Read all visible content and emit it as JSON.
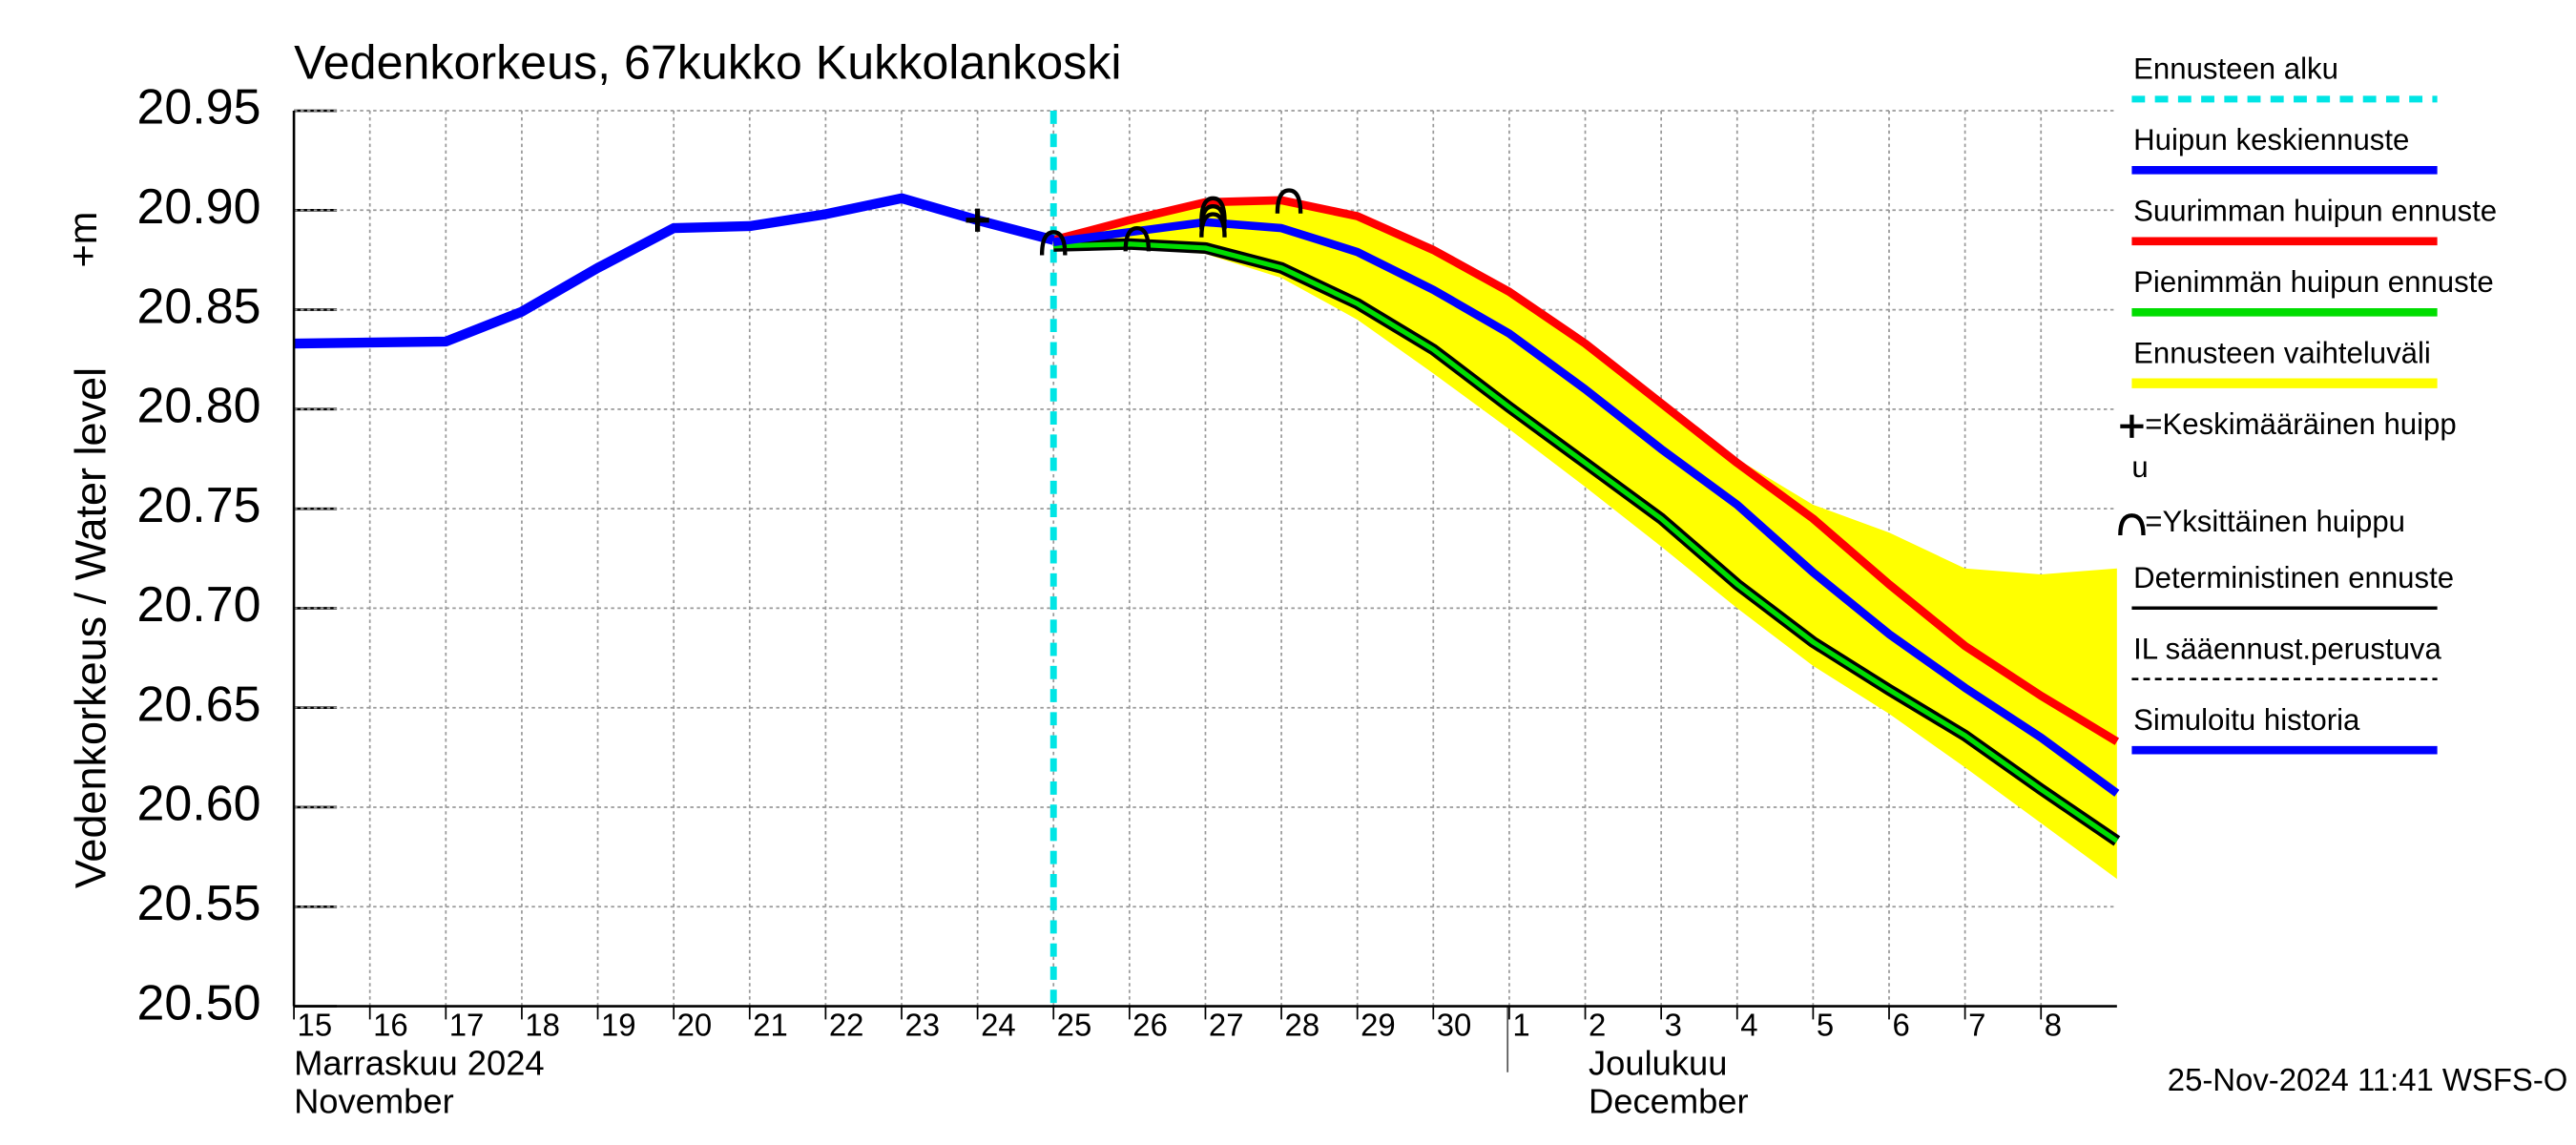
{
  "chart_data": {
    "type": "line",
    "title": "Vedenkorkeus, 67kukko Kukkolankoski",
    "ylabel": "Vedenkorkeus / Water level",
    "yunit": "+m",
    "ylim": [
      20.5,
      20.95
    ],
    "yticks": [
      {
        "value": 20.5,
        "label": "20.50"
      },
      20.55,
      {
        "value": 20.6,
        "label": "20.60"
      },
      20.65,
      {
        "value": 20.7,
        "label": "20.70"
      },
      20.75,
      {
        "value": 20.8,
        "label": "20.80"
      },
      20.85,
      {
        "value": 20.9,
        "label": "20.90"
      },
      20.95
    ],
    "xlim": [
      0,
      24
    ],
    "xticks": [
      {
        "value": 0,
        "label": "15"
      },
      {
        "value": 1,
        "label": "16"
      },
      {
        "value": 2,
        "label": "17"
      },
      {
        "value": 3,
        "label": "18"
      },
      {
        "value": 4,
        "label": "19"
      },
      {
        "value": 5,
        "label": "20"
      },
      {
        "value": 6,
        "label": "21"
      },
      {
        "value": 7,
        "label": "22"
      },
      {
        "value": 8,
        "label": "23"
      },
      {
        "value": 9,
        "label": "24"
      },
      {
        "value": 10,
        "label": "25"
      },
      {
        "value": 11,
        "label": "26"
      },
      {
        "value": 12,
        "label": "27"
      },
      {
        "value": 13,
        "label": "28"
      },
      {
        "value": 14,
        "label": "29"
      },
      {
        "value": 15,
        "label": "30"
      },
      {
        "value": 16,
        "label": "1"
      },
      {
        "value": 17,
        "label": "2"
      },
      {
        "value": 18,
        "label": "3"
      },
      {
        "value": 19,
        "label": "4"
      },
      {
        "value": 20,
        "label": "5"
      },
      {
        "value": 21,
        "label": "6"
      },
      {
        "value": 22,
        "label": "7"
      },
      {
        "value": 23,
        "label": "8"
      }
    ],
    "months": [
      {
        "x": 0,
        "label": "Marraskuu 2024",
        "label_en": "November"
      },
      {
        "x": 16,
        "label": "Joulukuu",
        "label_en": "December"
      }
    ],
    "grid": true,
    "series": [
      {
        "name": "Ennusteen alku",
        "kind": "vline",
        "x": 10,
        "color": "#00e5e5"
      },
      {
        "name": "Huipun keskiennuste",
        "kind": "line",
        "color": "#0000ff",
        "width": 5,
        "x": [
          10,
          11,
          12,
          13,
          14,
          15,
          16,
          17,
          18,
          19,
          20,
          21,
          22,
          23,
          24
        ],
        "values": [
          20.884,
          20.889,
          20.894,
          20.891,
          20.879,
          20.86,
          20.838,
          20.81,
          20.78,
          20.752,
          20.718,
          20.687,
          20.66,
          20.635,
          20.607
        ]
      },
      {
        "name": "Suurimman huipun ennuste",
        "kind": "line",
        "color": "#ff0000",
        "width": 5,
        "x": [
          10,
          11,
          12,
          13,
          14,
          15,
          16,
          17,
          18,
          19,
          20,
          21,
          22,
          23,
          24
        ],
        "values": [
          20.885,
          20.895,
          20.904,
          20.905,
          20.897,
          20.88,
          20.859,
          20.833,
          20.803,
          20.773,
          20.745,
          20.712,
          20.681,
          20.656,
          20.633
        ]
      },
      {
        "name": "Pienimmän huipun ennuste",
        "kind": "line",
        "color": "#00dd00",
        "width": 3,
        "x": [
          10,
          11,
          12,
          13,
          14,
          15,
          16,
          17,
          18,
          19,
          20,
          21,
          22,
          23,
          24
        ],
        "values": [
          20.882,
          20.883,
          20.881,
          20.871,
          20.853,
          20.83,
          20.801,
          20.773,
          20.745,
          20.712,
          20.683,
          20.659,
          20.636,
          20.609,
          20.583
        ]
      },
      {
        "name": "Ennusteen vaihteluväli",
        "kind": "band",
        "color": "#ffff00",
        "x": [
          10,
          11,
          12,
          13,
          14,
          15,
          16,
          17,
          18,
          19,
          20,
          21,
          22,
          23,
          24
        ],
        "upper": [
          20.885,
          20.895,
          20.904,
          20.905,
          20.897,
          20.88,
          20.859,
          20.833,
          20.803,
          20.775,
          20.752,
          20.738,
          20.72,
          20.717,
          20.72
        ],
        "lower": [
          20.88,
          20.881,
          20.878,
          20.866,
          20.845,
          20.818,
          20.79,
          20.761,
          20.731,
          20.7,
          20.671,
          20.647,
          20.62,
          20.592,
          20.564
        ]
      },
      {
        "name_lines": [
          "=Keskimääräinen huipp",
          "u"
        ],
        "kind": "marker",
        "symbol": "plus",
        "color": "#000000",
        "x": [
          9
        ],
        "values": [
          20.895
        ]
      },
      {
        "name": "=Yksittäinen huippu",
        "kind": "marker",
        "symbol": "arc",
        "color": "#000000",
        "x": [
          10,
          11.1,
          12.1,
          12.1,
          12.1,
          13.1
        ],
        "values": [
          20.884,
          20.886,
          20.893,
          20.897,
          20.901,
          20.905
        ]
      },
      {
        "name": "Deterministinen ennuste",
        "kind": "line",
        "color": "#000000",
        "width": 7,
        "x": [
          10,
          11,
          12,
          13,
          14,
          15,
          16,
          17,
          18,
          19,
          20,
          21,
          22,
          23,
          24
        ],
        "values": [
          20.882,
          20.883,
          20.881,
          20.871,
          20.853,
          20.83,
          20.801,
          20.773,
          20.745,
          20.712,
          20.683,
          20.659,
          20.636,
          20.609,
          20.583
        ]
      },
      {
        "name": "IL sääennust.perustuva",
        "kind": "legend-only",
        "color": "#000000",
        "dash": true
      },
      {
        "name": "Simuloitu historia",
        "kind": "line",
        "color": "#0000ff",
        "width": 6,
        "x": [
          0,
          2,
          3,
          4,
          5,
          6,
          7,
          8,
          9,
          10
        ],
        "values": [
          20.833,
          20.834,
          20.849,
          20.871,
          20.891,
          20.892,
          20.898,
          20.906,
          20.895,
          20.885
        ]
      }
    ],
    "footer": "25-Nov-2024 11:41 WSFS-O"
  }
}
